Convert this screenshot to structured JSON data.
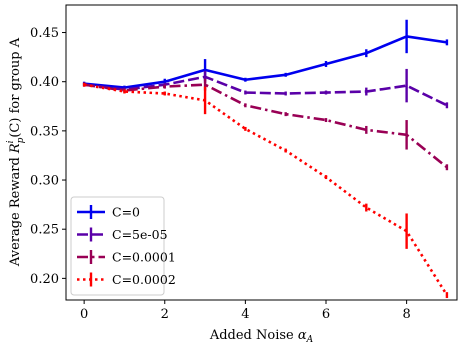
{
  "chart_data": {
    "type": "line",
    "xlabel_prefix": "Added Noise ",
    "xlabel_symbol": "α",
    "xlabel_sub": "A",
    "ylabel": "Average Reward R_p^i(C) for group A",
    "ylabel_prefix": "Average Reward ",
    "ylabel_R": "R",
    "ylabel_sup": "i",
    "ylabel_sub": "p",
    "ylabel_suffix": "(C) for group A",
    "xlim": [
      -0.45,
      9.25
    ],
    "ylim": [
      0.178,
      0.478
    ],
    "xticks": [
      0,
      2,
      4,
      6,
      8
    ],
    "yticks": [
      0.2,
      0.25,
      0.3,
      0.35,
      0.4,
      0.45
    ],
    "ytick_labels": [
      "0.20",
      "0.25",
      "0.30",
      "0.35",
      "0.40",
      "0.45"
    ],
    "legend_position": "lower-left",
    "x": [
      0,
      1,
      2,
      3,
      4,
      5,
      6,
      7,
      8,
      9
    ],
    "series": [
      {
        "name": "C=0",
        "color": "#0000ee",
        "dash": "solid",
        "values": [
          0.398,
          0.394,
          0.4,
          0.412,
          0.402,
          0.407,
          0.418,
          0.429,
          0.446,
          0.44
        ],
        "errors": [
          0.002,
          0.002,
          0.003,
          0.011,
          0.002,
          0.002,
          0.003,
          0.004,
          0.017,
          0.003
        ]
      },
      {
        "name": "C=5e-05",
        "color": "#5a00a8",
        "dash": "dashed",
        "values": [
          0.397,
          0.392,
          0.397,
          0.405,
          0.389,
          0.388,
          0.389,
          0.39,
          0.396,
          0.376
        ],
        "errors": [
          0.002,
          0.002,
          0.002,
          0.006,
          0.002,
          0.002,
          0.002,
          0.004,
          0.017,
          0.003
        ]
      },
      {
        "name": "C=0.0001",
        "color": "#990055",
        "dash": "dashdot",
        "values": [
          0.397,
          0.391,
          0.395,
          0.397,
          0.376,
          0.367,
          0.361,
          0.351,
          0.346,
          0.313
        ],
        "errors": [
          0.002,
          0.002,
          0.002,
          0.006,
          0.002,
          0.002,
          0.002,
          0.004,
          0.015,
          0.003
        ]
      },
      {
        "name": "C=0.0002",
        "color": "#ff0000",
        "dash": "dotted",
        "values": [
          0.397,
          0.39,
          0.388,
          0.381,
          0.352,
          0.33,
          0.303,
          0.272,
          0.248,
          0.183
        ],
        "errors": [
          0.002,
          0.002,
          0.002,
          0.014,
          0.002,
          0.002,
          0.002,
          0.004,
          0.018,
          0.003
        ]
      }
    ]
  }
}
